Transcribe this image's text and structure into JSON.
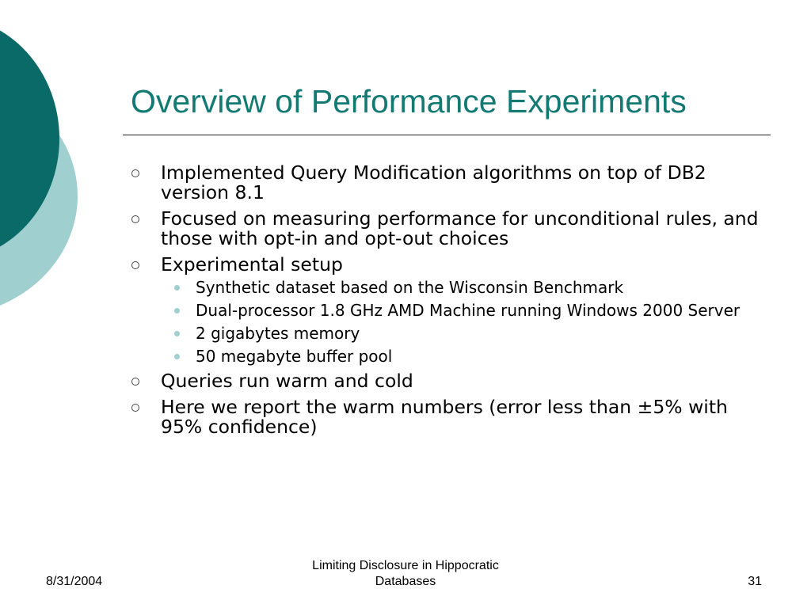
{
  "slide": {
    "title": "Overview of Performance Experiments",
    "bullets": [
      {
        "text": "Implemented Query Modification algorithms on top of DB2 version 8.1"
      },
      {
        "text": "Focused on measuring performance for unconditional rules, and those with opt-in and opt-out choices"
      },
      {
        "text": "Experimental setup",
        "sub": [
          "Synthetic dataset based on the Wisconsin Benchmark",
          "Dual-processor 1.8 GHz AMD Machine running Windows 2000 Server",
          "2 gigabytes memory",
          "50 megabyte buffer pool"
        ]
      },
      {
        "text": "Queries run warm and cold"
      },
      {
        "text": "Here we report the warm numbers (error less than ±5% with 95% confidence)"
      }
    ]
  },
  "footer": {
    "date": "8/31/2004",
    "title_line1": "Limiting Disclosure in Hippocratic",
    "title_line2": "Databases",
    "page_number": "31"
  },
  "theme": {
    "title_color": "#137a73",
    "dark_teal": "#0a6a67",
    "light_teal": "#9fcfcf"
  }
}
